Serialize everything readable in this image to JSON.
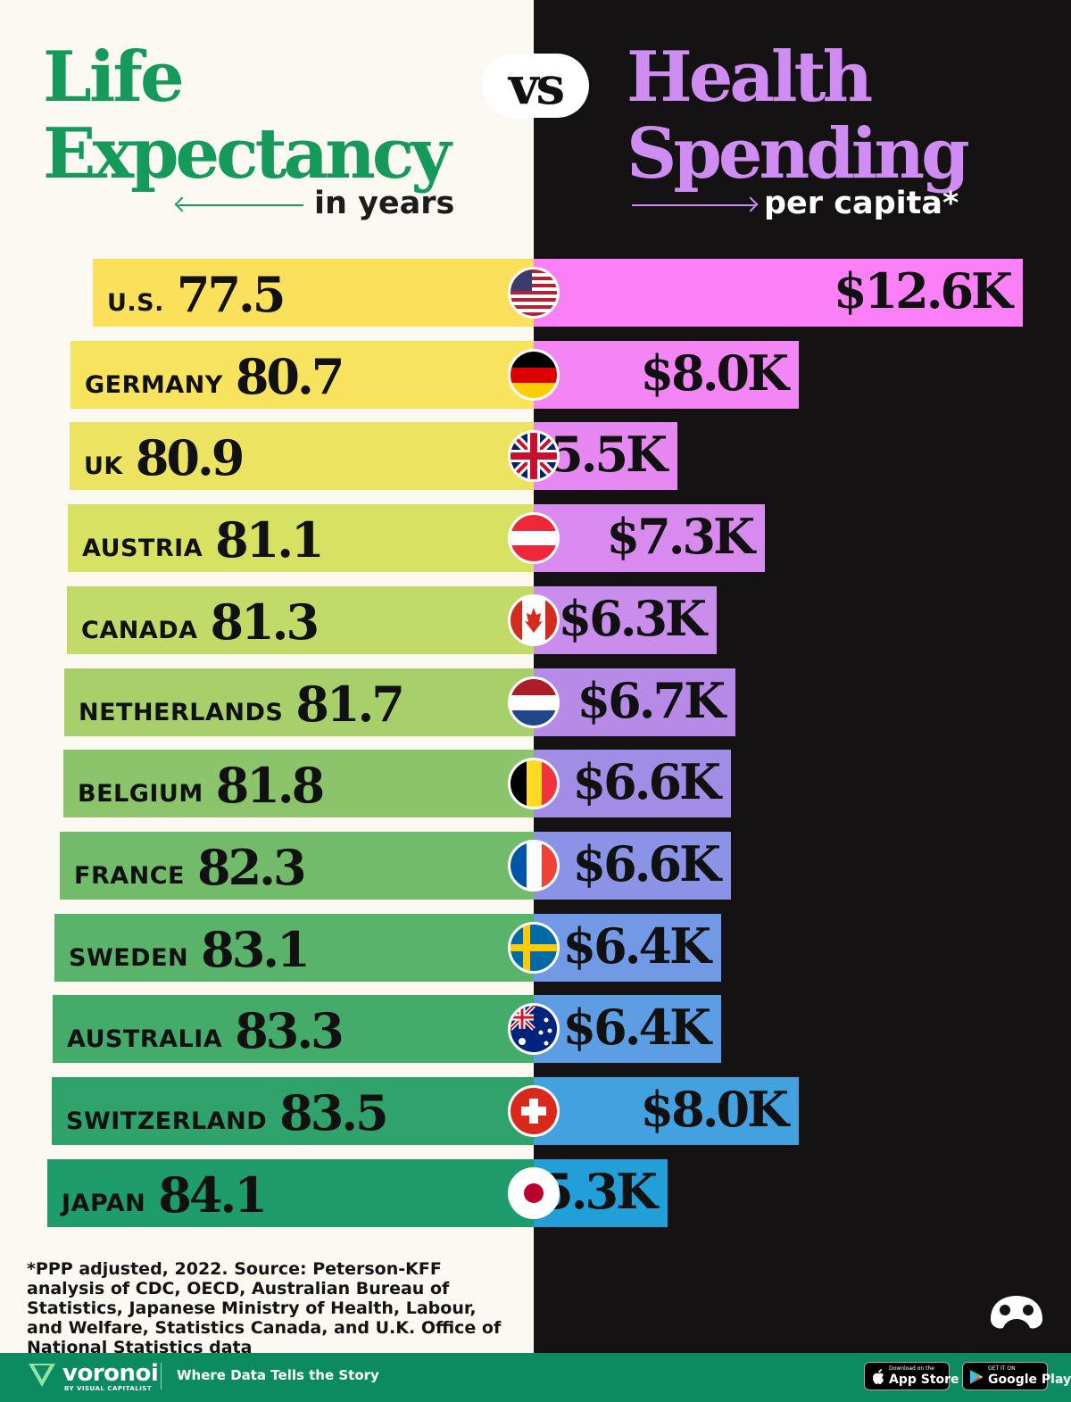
{
  "title": {
    "left_line1": "Life",
    "left_line2": "Expectancy",
    "left_sub": "in years",
    "vs": "vs",
    "right_line1": "Health",
    "right_line2": "Spending",
    "right_sub": "per capita*"
  },
  "chart_data": {
    "type": "bar",
    "categories": [
      "U.S.",
      "GERMANY",
      "UK",
      "AUSTRIA",
      "CANADA",
      "NETHERLANDS",
      "BELGIUM",
      "FRANCE",
      "SWEDEN",
      "AUSTRALIA",
      "SWITZERLAND",
      "JAPAN"
    ],
    "series": [
      {
        "name": "Life Expectancy",
        "values": [
          77.5,
          80.7,
          80.9,
          81.1,
          81.3,
          81.7,
          81.8,
          82.3,
          83.1,
          83.3,
          83.5,
          84.1
        ],
        "labels": [
          "77.5",
          "80.7",
          "80.9",
          "81.1",
          "81.3",
          "81.7",
          "81.8",
          "82.3",
          "83.1",
          "83.3",
          "83.5",
          "84.1"
        ]
      },
      {
        "name": "Health Spending",
        "values": [
          12.6,
          8.0,
          5.5,
          7.3,
          6.3,
          6.7,
          6.6,
          6.6,
          6.4,
          6.4,
          8.0,
          5.3
        ],
        "labels": [
          "$12.6K",
          "$8.0K",
          "$5.5K",
          "$7.3K",
          "$6.3K",
          "$6.7K",
          "$6.6K",
          "$6.6K",
          "$6.4K",
          "$6.4K",
          "$8.0K",
          "$5.3K"
        ]
      }
    ],
    "flags": [
      "us",
      "de",
      "gb",
      "at",
      "ca",
      "nl",
      "be",
      "fr",
      "se",
      "au",
      "ch",
      "jp"
    ],
    "left_colors": [
      "#fbe05c",
      "#f7e35e",
      "#ece460",
      "#d7e263",
      "#c2da68",
      "#a8d06a",
      "#8cc46b",
      "#71bb6b",
      "#5ab36b",
      "#45ab6b",
      "#2fa36b",
      "#1f9c6b"
    ],
    "right_colors": [
      "#fb80f8",
      "#f485f5",
      "#e687f2",
      "#d88aef",
      "#c98deb",
      "#b78ae8",
      "#a18ce6",
      "#8b93e6",
      "#7299e5",
      "#5c9de3",
      "#43a1e0",
      "#229fd8"
    ]
  },
  "footnote": "*PPP adjusted, 2022. Source: Peterson-KFF analysis of CDC, OECD, Australian Bureau of Statistics, Japanese Ministry of Health, Labour, and Welfare, Statistics Canada, and U.K. Office of National Statistics data",
  "footer": {
    "brand": "voronoi",
    "brand_sub": "BY VISUAL CAPITALIST",
    "tagline": "Where Data Tells the Story",
    "appstore_small": "Download on the",
    "appstore_big": "App Store",
    "googleplay_small": "GET IT ON",
    "googleplay_big": "Google Play"
  },
  "icons": [
    "visual-capitalist-logo-icon",
    "voronoi-logo-icon",
    "apple-icon",
    "google-play-icon"
  ]
}
